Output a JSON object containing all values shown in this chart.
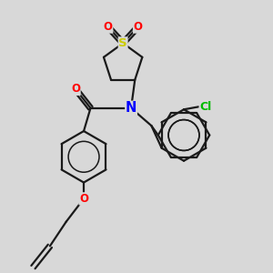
{
  "background_color": "#d8d8d8",
  "bond_color": "#1a1a1a",
  "atom_colors": {
    "S": "#cccc00",
    "O": "#ff0000",
    "N": "#0000ff",
    "Cl": "#00bb00"
  },
  "figsize": [
    3.0,
    3.0
  ],
  "dpi": 100,
  "lw": 1.6,
  "font_size": 8.5
}
